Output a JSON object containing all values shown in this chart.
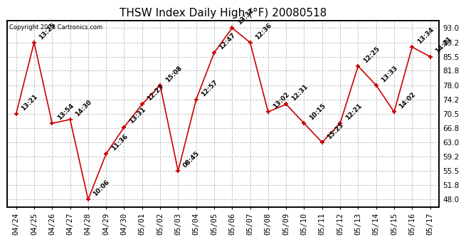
{
  "title": "THSW Index Daily High (°F) 20080518",
  "copyright": "Copyright 2008 Cartronics.com",
  "x_labels": [
    "04/24",
    "04/25",
    "04/26",
    "04/27",
    "04/28",
    "04/29",
    "04/30",
    "05/01",
    "05/02",
    "05/03",
    "05/04",
    "05/05",
    "05/06",
    "05/07",
    "05/08",
    "05/09",
    "05/10",
    "05/11",
    "05/12",
    "05/13",
    "05/14",
    "05/15",
    "05/16",
    "05/17"
  ],
  "y_values": [
    70.5,
    89.2,
    68.0,
    69.0,
    48.0,
    60.0,
    67.0,
    73.0,
    78.0,
    55.5,
    74.2,
    86.5,
    93.0,
    89.2,
    71.0,
    73.0,
    68.0,
    63.0,
    68.0,
    83.0,
    78.0,
    71.0,
    88.0,
    85.5
  ],
  "time_labels": [
    "13:21",
    "13:25",
    "13:54",
    "14:30",
    "10:06",
    "11:36",
    "13:31",
    "12:23",
    "15:08",
    "08:45",
    "12:57",
    "12:47",
    "13:32",
    "12:36",
    "13:02",
    "12:31",
    "10:15",
    "15:23",
    "12:21",
    "12:25",
    "13:33",
    "14:02",
    "13:34",
    "14:21"
  ],
  "line_color": "#cc0000",
  "marker_color": "#cc0000",
  "background_color": "#ffffff",
  "plot_bg_color": "#ffffff",
  "grid_color": "#bbbbbb",
  "y_ticks": [
    48.0,
    51.8,
    55.5,
    59.2,
    63.0,
    66.8,
    70.5,
    74.2,
    78.0,
    81.8,
    85.5,
    89.2,
    93.0
  ],
  "y_min": 46.0,
  "y_max": 95.0,
  "title_fontsize": 11,
  "label_fontsize": 6.5,
  "tick_fontsize": 7.5
}
